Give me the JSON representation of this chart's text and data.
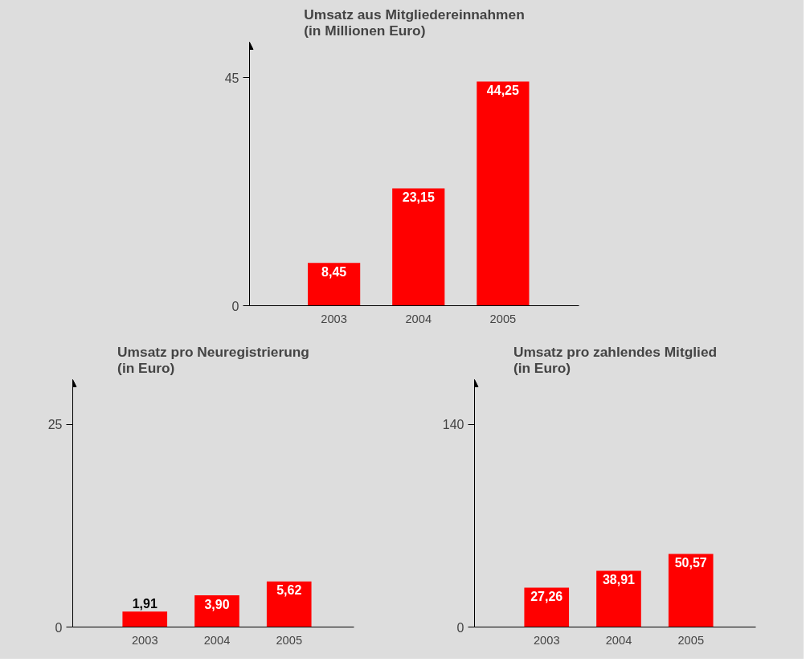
{
  "chart_data": [
    {
      "type": "bar",
      "title": "Umsatz aus Mitgliedereinnahmen",
      "subtitle": "(in Millionen Euro)",
      "categories": [
        "2003",
        "2004",
        "2005"
      ],
      "values": [
        8.45,
        23.15,
        44.25
      ],
      "value_labels": [
        "8,45",
        "23,15",
        "44,25"
      ],
      "color": "#ff0000",
      "ylim": [
        0,
        52
      ],
      "yticks": [
        0,
        45
      ],
      "grid": false
    },
    {
      "type": "bar",
      "title": "Umsatz pro Neuregistrierung",
      "subtitle": "(in Euro)",
      "categories": [
        "2003",
        "2004",
        "2005"
      ],
      "values": [
        1.91,
        3.9,
        5.62
      ],
      "value_labels": [
        "1,91",
        "3,90",
        "5,62"
      ],
      "color": "#ff0000",
      "ylim": [
        0,
        30.5
      ],
      "yticks": [
        0,
        25
      ],
      "grid": false
    },
    {
      "type": "bar",
      "title": "Umsatz pro zahlendes Mitglied",
      "subtitle": "(in Euro)",
      "categories": [
        "2003",
        "2004",
        "2005"
      ],
      "values": [
        27.26,
        38.91,
        50.57
      ],
      "value_labels": [
        "27,26",
        "38,91",
        "50,57"
      ],
      "color": "#ff0000",
      "ylim": [
        0,
        171
      ],
      "yticks": [
        0,
        140
      ],
      "grid": false
    }
  ]
}
